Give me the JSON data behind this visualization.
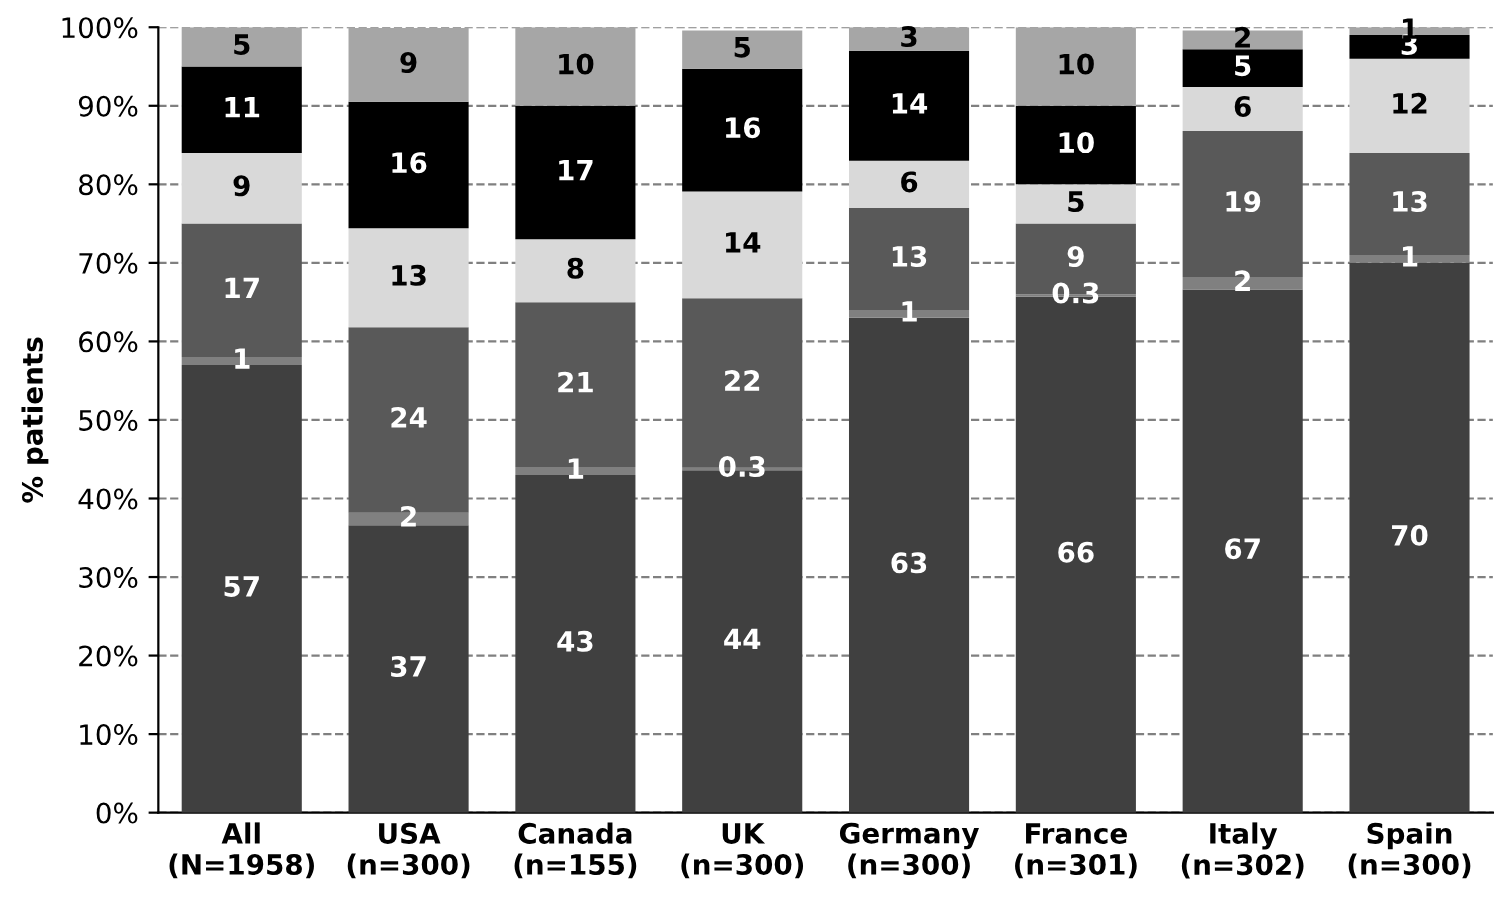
{
  "chart_data": {
    "type": "bar",
    "stacked": true,
    "ylabel": "% patients",
    "categories": [
      "All\n(N=1958)",
      "USA\n(n=300)",
      "Canada\n(n=155)",
      "UK\n(n=300)",
      "Germany\n(n=300)",
      "France\n(n=301)",
      "Italy\n(n=302)",
      "Spain\n(n=300)"
    ],
    "series": [
      {
        "color": "#404040",
        "values": [
          57,
          36.6,
          43,
          43.6,
          63,
          65.7,
          66.6,
          70
        ],
        "value_labels": [
          "57",
          "37",
          "43",
          "44",
          "63",
          "66",
          "67",
          "70"
        ]
      },
      {
        "color": "#808080",
        "values": [
          1,
          1.6,
          1,
          0.3,
          1,
          0.3,
          1.6,
          1
        ],
        "value_labels": [
          "1",
          "2",
          "1",
          "0.3",
          "1",
          "0.3",
          "2",
          "1"
        ]
      },
      {
        "color": "#595959",
        "values": [
          17,
          23.6,
          21,
          21.6,
          13,
          9,
          18.6,
          13
        ],
        "value_labels": [
          "17",
          "24",
          "21",
          "22",
          "13",
          "9",
          "19",
          "13"
        ]
      },
      {
        "color": "#d9d9d9",
        "values": [
          9,
          12.6,
          8,
          13.6,
          6,
          5,
          5.6,
          12
        ],
        "value_labels": [
          "9",
          "13",
          "8",
          "14",
          "6",
          "5",
          "6",
          "12"
        ]
      },
      {
        "color": "#000000",
        "values": [
          11,
          16.1,
          17,
          15.6,
          14,
          10,
          4.8,
          3
        ],
        "value_labels": [
          "11",
          "16",
          "17",
          "16",
          "14",
          "10",
          "5",
          "3"
        ]
      },
      {
        "color": "#a6a6a6",
        "values": [
          5,
          9.4,
          10,
          4.9,
          3,
          10,
          2.4,
          1
        ],
        "value_labels": [
          "5",
          "9",
          "10",
          "5",
          "3",
          "10",
          "2",
          "1"
        ]
      }
    ],
    "ylim": [
      0,
      100
    ],
    "yticks": [
      {
        "value": 0,
        "label": "0%"
      },
      {
        "value": 10,
        "label": "10%"
      },
      {
        "value": 20,
        "label": "20%"
      },
      {
        "value": 30,
        "label": "30%"
      },
      {
        "value": 40,
        "label": "40%"
      },
      {
        "value": 50,
        "label": "50%"
      },
      {
        "value": 60,
        "label": "60%"
      },
      {
        "value": 70,
        "label": "70%"
      },
      {
        "value": 80,
        "label": "80%"
      },
      {
        "value": 90,
        "label": "90%"
      },
      {
        "value": 100,
        "label": "100%"
      }
    ],
    "grid": "y"
  }
}
